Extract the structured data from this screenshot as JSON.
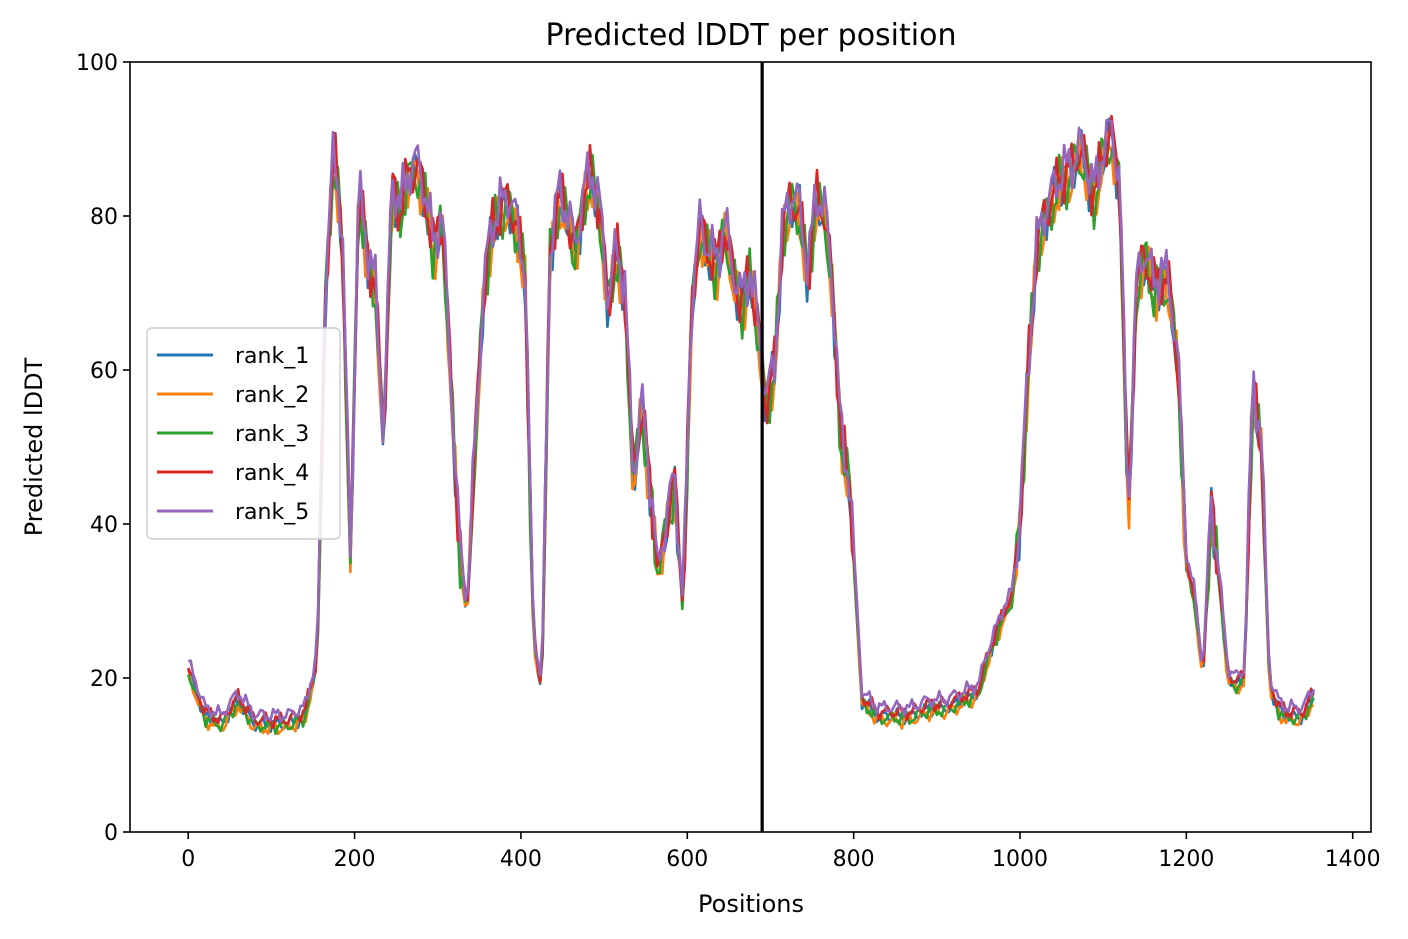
{
  "chart_data": {
    "type": "line",
    "title": "Predicted lDDT per position",
    "xlabel": "Positions",
    "ylabel": "Predicted lDDT",
    "xlim": [
      -70,
      1422
    ],
    "ylim": [
      0,
      100
    ],
    "xticks": [
      0,
      200,
      400,
      600,
      800,
      1000,
      1200,
      1400
    ],
    "yticks": [
      0,
      20,
      40,
      60,
      80,
      100
    ],
    "grid": false,
    "legend": "center-left",
    "chain_break_x": 690,
    "series": [
      {
        "name": "rank_1",
        "color": "#1f77b4"
      },
      {
        "name": "rank_2",
        "color": "#ff7f0e"
      },
      {
        "name": "rank_3",
        "color": "#2ca02c"
      },
      {
        "name": "rank_4",
        "color": "#d62728"
      },
      {
        "name": "rank_5",
        "color": "#9467bd"
      }
    ],
    "x": [
      0,
      20,
      40,
      60,
      80,
      100,
      120,
      140,
      155,
      165,
      175,
      185,
      195,
      205,
      215,
      225,
      235,
      245,
      255,
      265,
      275,
      285,
      295,
      305,
      315,
      325,
      335,
      345,
      355,
      365,
      375,
      385,
      395,
      405,
      415,
      425,
      435,
      445,
      455,
      465,
      475,
      485,
      495,
      505,
      515,
      525,
      535,
      545,
      555,
      565,
      575,
      585,
      595,
      605,
      615,
      625,
      635,
      645,
      655,
      665,
      675,
      685,
      695,
      705,
      715,
      725,
      735,
      745,
      755,
      765,
      775,
      785,
      795,
      810,
      830,
      850,
      870,
      890,
      910,
      930,
      950,
      960,
      970,
      980,
      990,
      1000,
      1010,
      1020,
      1030,
      1040,
      1050,
      1060,
      1070,
      1080,
      1090,
      1100,
      1110,
      1120,
      1130,
      1140,
      1150,
      1160,
      1170,
      1180,
      1190,
      1200,
      1210,
      1220,
      1230,
      1240,
      1250,
      1260,
      1270,
      1280,
      1290,
      1300,
      1310,
      1320,
      1330,
      1340,
      1355
    ],
    "base_values": [
      21,
      15,
      14,
      17,
      14,
      14,
      14,
      15,
      22,
      70,
      88,
      78,
      35,
      83,
      75,
      70,
      50,
      84,
      80,
      85,
      86,
      82,
      75,
      80,
      60,
      38,
      28,
      50,
      70,
      78,
      80,
      82,
      78,
      72,
      25,
      18,
      75,
      82,
      80,
      75,
      82,
      85,
      80,
      68,
      75,
      70,
      45,
      55,
      45,
      33,
      40,
      45,
      28,
      68,
      78,
      75,
      73,
      78,
      72,
      68,
      72,
      65,
      55,
      60,
      78,
      82,
      80,
      72,
      82,
      80,
      70,
      50,
      45,
      17,
      15,
      15,
      15,
      16,
      16,
      17,
      18,
      22,
      25,
      28,
      30,
      40,
      60,
      75,
      80,
      82,
      85,
      85,
      88,
      86,
      82,
      88,
      90,
      84,
      40,
      70,
      75,
      70,
      72,
      70,
      60,
      35,
      30,
      20,
      42,
      32,
      20,
      19,
      20,
      58,
      50,
      19,
      16,
      15,
      15,
      15,
      18
    ]
  }
}
